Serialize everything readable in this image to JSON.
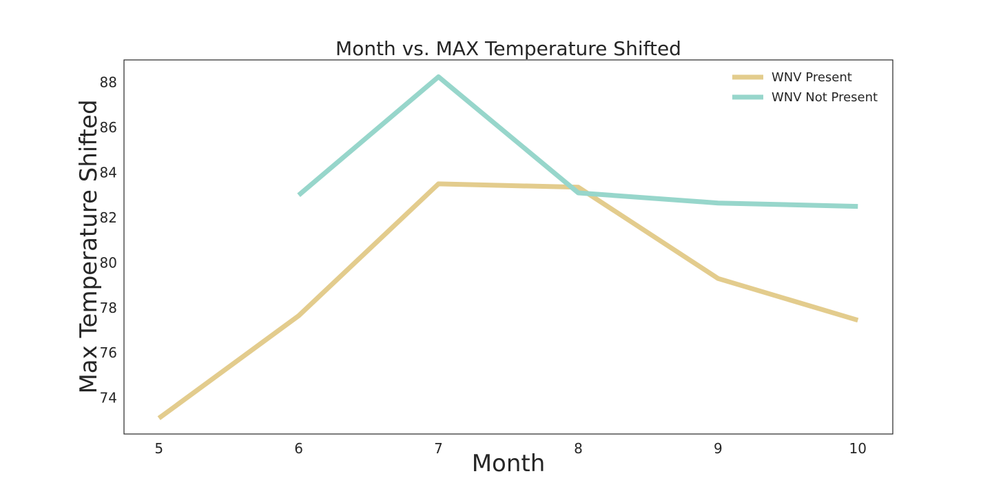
{
  "chart_data": {
    "type": "line",
    "title": "Month vs. MAX Temperature Shifted",
    "xlabel": "Month",
    "ylabel": "Max Temperature Shifted",
    "xlim": [
      4.75,
      10.25
    ],
    "ylim": [
      72.4,
      89.0
    ],
    "xticks": [
      5,
      6,
      7,
      8,
      9,
      10
    ],
    "yticks": [
      74,
      76,
      78,
      80,
      82,
      84,
      86,
      88
    ],
    "grid": false,
    "legend_position": "top-right",
    "series": [
      {
        "name": "WNV Present",
        "color": "#e3cc8d",
        "x": [
          5,
          6,
          7,
          8,
          9,
          10
        ],
        "y": [
          73.1,
          77.65,
          83.5,
          83.35,
          79.3,
          77.45
        ]
      },
      {
        "name": "WNV Not Present",
        "color": "#97d6cb",
        "x": [
          6,
          7,
          8,
          9,
          10
        ],
        "y": [
          83.0,
          88.25,
          83.1,
          82.65,
          82.5
        ]
      }
    ]
  }
}
